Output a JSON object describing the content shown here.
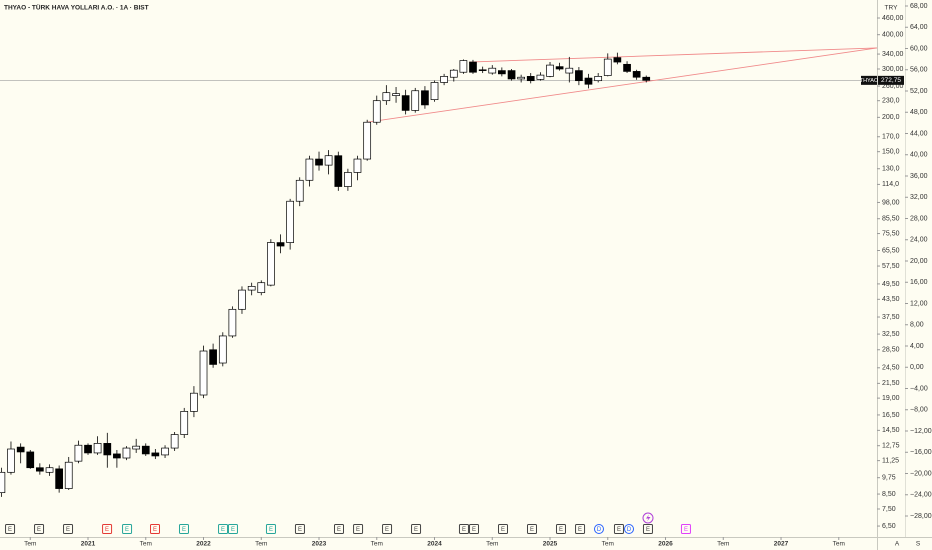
{
  "chart_data": {
    "type": "candlestick",
    "title": "THYAO - TÜRK HAVA YOLLARI A.O. · 1A · BIST",
    "currency": "TRY",
    "scale_buttons": [
      "A",
      "S"
    ],
    "log_scale": true,
    "up_color": "#ffffff",
    "down_color": "#000000",
    "border_color": "#000000",
    "x": [
      2020.25,
      2020.333,
      2020.417,
      2020.5,
      2020.583,
      2020.667,
      2020.75,
      2020.833,
      2020.917,
      2021.0,
      2021.083,
      2021.167,
      2021.25,
      2021.333,
      2021.417,
      2021.5,
      2021.583,
      2021.667,
      2021.75,
      2021.833,
      2021.917,
      2022.0,
      2022.083,
      2022.167,
      2022.25,
      2022.333,
      2022.417,
      2022.5,
      2022.583,
      2022.667,
      2022.75,
      2022.833,
      2022.917,
      2023.0,
      2023.083,
      2023.167,
      2023.25,
      2023.333,
      2023.417,
      2023.5,
      2023.583,
      2023.667,
      2023.75,
      2023.833,
      2023.917,
      2024.0,
      2024.083,
      2024.167,
      2024.25,
      2024.333,
      2024.417,
      2024.5,
      2024.583,
      2024.667,
      2024.75,
      2024.833,
      2024.917,
      2025.0,
      2025.083,
      2025.167,
      2025.25,
      2025.333,
      2025.417,
      2025.5,
      2025.583,
      2025.667,
      2025.75,
      2025.833
    ],
    "open": [
      8.6,
      10.2,
      12.6,
      12.1,
      10.6,
      10.2,
      10.5,
      8.9,
      11.2,
      12.8,
      12.0,
      13.0,
      11.9,
      11.5,
      12.4,
      12.7,
      12.0,
      11.8,
      12.5,
      14.0,
      17.0,
      19.5,
      28.5,
      25.5,
      32.0,
      40.0,
      47.0,
      46.0,
      49.0,
      70.0,
      70.0,
      99.0,
      118.0,
      141.0,
      134.0,
      145.0,
      112.0,
      126.0,
      141.0,
      192.0,
      230.0,
      240.0,
      240.0,
      212.0,
      250.0,
      232.0,
      268.0,
      280.0,
      292.0,
      318.0,
      298.0,
      290.0,
      296.0,
      296.0,
      276.0,
      282.0,
      275.0,
      282.0,
      306.0,
      290.0,
      296.0,
      278.0,
      272.0,
      284.0,
      330.0,
      312.0,
      294.0,
      280.0
    ],
    "high": [
      10.6,
      13.2,
      13.0,
      12.3,
      11.0,
      10.9,
      10.8,
      11.6,
      13.3,
      13.0,
      13.8,
      14.2,
      12.3,
      12.7,
      13.5,
      13.0,
      12.4,
      12.8,
      14.3,
      17.5,
      21.0,
      29.5,
      30.0,
      33.0,
      41.0,
      48.5,
      50.0,
      51.0,
      72.0,
      75.0,
      101.0,
      121.0,
      145.0,
      150.0,
      152.0,
      150.0,
      130.0,
      145.0,
      196.0,
      240.0,
      262.0,
      258.0,
      252.0,
      256.0,
      260.0,
      272.0,
      288.0,
      300.0,
      325.0,
      324.0,
      306.0,
      310.0,
      304.0,
      300.0,
      286.0,
      290.0,
      292.0,
      318.0,
      316.0,
      332.0,
      305.0,
      288.0,
      290.0,
      342.0,
      344.0,
      320.0,
      298.0,
      284.0
    ],
    "low": [
      8.3,
      10.0,
      11.0,
      10.5,
      10.0,
      9.9,
      8.6,
      8.8,
      11.0,
      11.8,
      11.8,
      10.6,
      10.6,
      11.3,
      12.0,
      11.7,
      11.4,
      11.5,
      12.2,
      13.6,
      16.2,
      19.0,
      24.5,
      24.8,
      31.5,
      38.5,
      45.0,
      45.0,
      48.5,
      64.0,
      66.0,
      95.0,
      112.0,
      128.0,
      124.0,
      108.0,
      108.0,
      118.0,
      139.0,
      188.0,
      222.0,
      226.0,
      205.0,
      208.0,
      215.0,
      228.0,
      262.0,
      270.0,
      288.0,
      288.0,
      290.0,
      286.0,
      282.0,
      272.0,
      268.0,
      266.0,
      272.0,
      280.0,
      296.0,
      268.0,
      262.0,
      255.0,
      268.0,
      282.0,
      312.0,
      290.0,
      274.0,
      268.0
    ],
    "close": [
      10.2,
      12.4,
      12.1,
      10.6,
      10.3,
      10.6,
      8.9,
      11.1,
      12.8,
      12.0,
      13.0,
      11.8,
      11.5,
      12.5,
      12.7,
      11.9,
      11.7,
      12.5,
      14.0,
      17.0,
      19.8,
      28.2,
      25.2,
      32.0,
      40.0,
      47.0,
      48.5,
      50.0,
      70.0,
      68.0,
      99.0,
      118.0,
      141.0,
      134.0,
      145.0,
      112.0,
      126.0,
      141.0,
      192.0,
      230.0,
      246.0,
      244.0,
      212.0,
      250.0,
      222.0,
      268.0,
      282.0,
      297.0,
      322.0,
      292.0,
      296.0,
      302.0,
      288.0,
      276.0,
      280.0,
      272.0,
      285.0,
      310.0,
      300.0,
      302.0,
      272.0,
      264.0,
      282.0,
      326.0,
      318.0,
      294.0,
      280.0,
      272.75
    ],
    "xlim": [
      2020.238,
      2027.831
    ],
    "xticks": [
      {
        "value": 2020.5,
        "label": "Tem"
      },
      2021,
      {
        "value": 2021.5,
        "label": "Tem"
      },
      2022,
      {
        "value": 2022.5,
        "label": "Tem"
      },
      2023,
      {
        "value": 2023.5,
        "label": "Tem"
      },
      2024,
      {
        "value": 2024.5,
        "label": "Tem"
      },
      2025,
      {
        "value": 2025.5,
        "label": "Tem"
      },
      2026,
      {
        "value": 2026.5,
        "label": "Tem"
      },
      2027,
      {
        "value": 2027.5,
        "label": "Tem"
      }
    ],
    "ylim": [
      5.93,
      535
    ],
    "yticks": [
      {
        "value": 460,
        "label": "460,00"
      },
      {
        "value": 400,
        "label": "400,00"
      },
      {
        "value": 340,
        "label": "340,00"
      },
      {
        "value": 300,
        "label": "300,00"
      },
      {
        "value": 260,
        "label": "260,00"
      },
      {
        "value": 230,
        "label": "230,0"
      },
      {
        "value": 200,
        "label": "200,0"
      },
      {
        "value": 170,
        "label": "170,0"
      },
      {
        "value": 150,
        "label": "150,0"
      },
      {
        "value": 130,
        "label": "130,0"
      },
      {
        "value": 114,
        "label": "114,0"
      },
      {
        "value": 98,
        "label": "98,00"
      },
      {
        "value": 85.5,
        "label": "85,50"
      },
      {
        "value": 75.5,
        "label": "75,50"
      },
      {
        "value": 65.5,
        "label": "65,50"
      },
      {
        "value": 57.5,
        "label": "57,50"
      },
      {
        "value": 49.5,
        "label": "49,50"
      },
      {
        "value": 43.5,
        "label": "43,50"
      },
      {
        "value": 37.5,
        "label": "37,50"
      },
      {
        "value": 32.5,
        "label": "32,50"
      },
      {
        "value": 28.5,
        "label": "28,50"
      },
      {
        "value": 24.5,
        "label": "24,50"
      },
      {
        "value": 21.5,
        "label": "21,50"
      },
      {
        "value": 19,
        "label": "19,00"
      },
      {
        "value": 16.5,
        "label": "16,50"
      },
      {
        "value": 14.5,
        "label": "14,50"
      },
      {
        "value": 12.75,
        "label": "12,75"
      },
      {
        "value": 11.25,
        "label": "11,25"
      },
      {
        "value": 9.75,
        "label": "9,75"
      },
      {
        "value": 8.5,
        "label": "8,50"
      },
      {
        "value": 7.5,
        "label": "7,50"
      },
      {
        "value": 6.5,
        "label": "6,50"
      }
    ],
    "y2lim": [
      -31.95,
      69.13
    ],
    "y2ticks": [
      {
        "value": 68,
        "label": "68,00"
      },
      {
        "value": 64,
        "label": "64,00"
      },
      {
        "value": 60,
        "label": "60,00"
      },
      {
        "value": 56,
        "label": "56,00"
      },
      {
        "value": 52,
        "label": "52,00"
      },
      {
        "value": 48,
        "label": "48,00"
      },
      {
        "value": 44,
        "label": "44,00"
      },
      {
        "value": 40,
        "label": "40,00"
      },
      {
        "value": 36,
        "label": "36,00"
      },
      {
        "value": 32,
        "label": "32,00"
      },
      {
        "value": 28,
        "label": "28,00"
      },
      {
        "value": 24,
        "label": "24,00"
      },
      {
        "value": 20,
        "label": "20,00"
      },
      {
        "value": 16,
        "label": "16,00"
      },
      {
        "value": 12,
        "label": "12,00"
      },
      {
        "value": 8,
        "label": "8,00"
      },
      {
        "value": 4,
        "label": "4,00"
      },
      {
        "value": 0,
        "label": "0,00"
      },
      {
        "value": -4,
        "label": "−4,00"
      },
      {
        "value": -8,
        "label": "−8,00"
      },
      {
        "value": -12,
        "label": "−12,00"
      },
      {
        "value": -16,
        "label": "−16,00"
      },
      {
        "value": -20,
        "label": "−20,00"
      },
      {
        "value": -24,
        "label": "−24,00"
      },
      {
        "value": -28,
        "label": "−28,00"
      }
    ],
    "last": {
      "symbol": "THYAO",
      "value": 272.75,
      "label": "272,75"
    },
    "trendlines": [
      {
        "color": "#f08a8a",
        "x": [
          2023.417,
          2027.831
        ],
        "y": [
          192,
          358
        ]
      },
      {
        "color": "#f08a8a",
        "x": [
          2024.3,
          2027.831
        ],
        "y": [
          318,
          358
        ]
      }
    ],
    "events": [
      {
        "label": "E",
        "x": 2020.325,
        "color": "#444444"
      },
      {
        "label": "E",
        "x": 2020.576,
        "color": "#444444"
      },
      {
        "label": "E",
        "x": 2020.827,
        "color": "#444444"
      },
      {
        "label": "E",
        "x": 2021.165,
        "color": "#e53935"
      },
      {
        "label": "E",
        "x": 2021.338,
        "color": "#26a69a"
      },
      {
        "label": "E",
        "x": 2021.58,
        "color": "#e53935"
      },
      {
        "label": "E",
        "x": 2021.831,
        "color": "#26a69a"
      },
      {
        "label": "E",
        "x": 2022.169,
        "color": "#26a69a"
      },
      {
        "label": "E",
        "x": 2022.255,
        "color": "#26a69a"
      },
      {
        "label": "E",
        "x": 2022.584,
        "color": "#26a69a"
      },
      {
        "label": "E",
        "x": 2022.835,
        "color": "#444444"
      },
      {
        "label": "E",
        "x": 2023.173,
        "color": "#444444"
      },
      {
        "label": "E",
        "x": 2023.338,
        "color": "#444444"
      },
      {
        "label": "E",
        "x": 2023.589,
        "color": "#444444"
      },
      {
        "label": "E",
        "x": 2023.84,
        "color": "#444444"
      },
      {
        "label": "E",
        "x": 2024.255,
        "color": "#444444"
      },
      {
        "label": "E",
        "x": 2024.342,
        "color": "#444444"
      },
      {
        "label": "E",
        "x": 2024.593,
        "color": "#444444"
      },
      {
        "label": "E",
        "x": 2024.844,
        "color": "#444444"
      },
      {
        "label": "E",
        "x": 2025.095,
        "color": "#444444"
      },
      {
        "label": "E",
        "x": 2025.26,
        "color": "#444444"
      },
      {
        "label": "D",
        "x": 2025.424,
        "color": "#2962ff"
      },
      {
        "label": "E",
        "x": 2025.597,
        "color": "#444444"
      },
      {
        "label": "D",
        "x": 2025.684,
        "color": "#2962ff"
      },
      {
        "label": "E",
        "x": 2025.848,
        "color": "#444444"
      },
      {
        "label": "E",
        "x": 2026.177,
        "color": "#e040fb"
      }
    ]
  }
}
